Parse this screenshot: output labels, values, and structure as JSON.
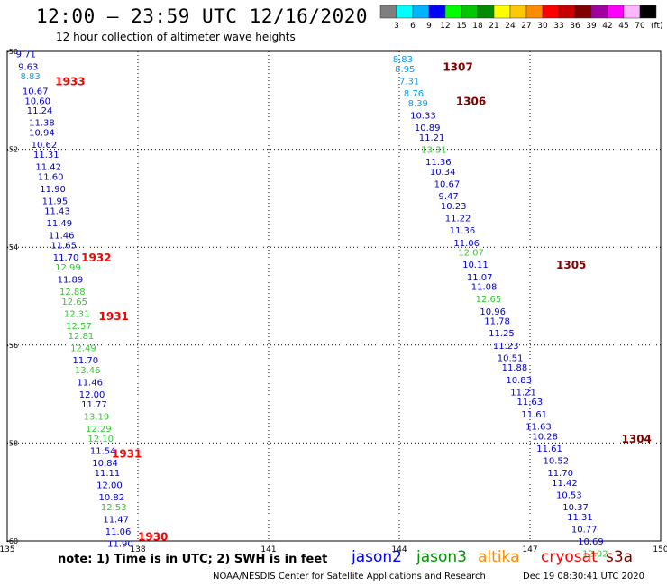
{
  "header": {
    "title": "12:00 – 23:59 UTC 12/16/2020",
    "subtitle": "12 hour collection of altimeter wave heights"
  },
  "color_scale": {
    "unit": "(ft)",
    "bins": [
      {
        "label": "3",
        "color": "#7f7f7f"
      },
      {
        "label": "6",
        "color": "#00ffff"
      },
      {
        "label": "9",
        "color": "#00b4ff"
      },
      {
        "label": "12",
        "color": "#0000ff"
      },
      {
        "label": "15",
        "color": "#00ff00"
      },
      {
        "label": "18",
        "color": "#00c800"
      },
      {
        "label": "21",
        "color": "#008c00"
      },
      {
        "label": "24",
        "color": "#ffff00"
      },
      {
        "label": "27",
        "color": "#ffc800"
      },
      {
        "label": "30",
        "color": "#ff8c00"
      },
      {
        "label": "33",
        "color": "#ff0000"
      },
      {
        "label": "36",
        "color": "#c80000"
      },
      {
        "label": "39",
        "color": "#800000"
      },
      {
        "label": "42",
        "color": "#a000a0"
      },
      {
        "label": "45",
        "color": "#ff00ff"
      },
      {
        "label": "70",
        "color": "#ffb4ff"
      },
      {
        "label": "",
        "color": "#000000"
      }
    ]
  },
  "map": {
    "lon_ticks": [
      "135",
      "138",
      "141",
      "144",
      "147",
      "150"
    ],
    "lat_ticks": [
      "-50",
      "-52",
      "-54",
      "-56",
      "-58",
      "-60"
    ],
    "lon_range": [
      135,
      150
    ],
    "lat_range": [
      -60,
      -50
    ]
  },
  "chart_data": {
    "type": "scatter",
    "title": "12:00 – 23:59 UTC 12/16/2020",
    "xlabel": "",
    "ylabel": "",
    "xlim": [
      135,
      150
    ],
    "ylim": [
      -60,
      -50
    ],
    "tracks": [
      {
        "satellite": "cryosat",
        "time_labels": [
          {
            "label": "1933",
            "lon": 136.1,
            "lat": -50.6
          },
          {
            "label": "1932",
            "lon": 136.7,
            "lat": -54.2
          },
          {
            "label": "1931",
            "lon": 137.1,
            "lat": -55.4
          },
          {
            "label": "1931",
            "lon": 137.4,
            "lat": -58.2
          },
          {
            "label": "1930",
            "lon": 138.0,
            "lat": -59.9
          }
        ],
        "points": [
          {
            "lon": 135.2,
            "lat": -50.05,
            "swh": "9.71",
            "color": "#0000c8"
          },
          {
            "lon": 135.25,
            "lat": -50.3,
            "swh": "9.63",
            "color": "#0000c8"
          },
          {
            "lon": 135.3,
            "lat": -50.5,
            "swh": "8.83",
            "color": "#00a0ff"
          },
          {
            "lon": 135.35,
            "lat": -50.8,
            "swh": "10.67",
            "color": "#0000c8"
          },
          {
            "lon": 135.4,
            "lat": -51.0,
            "swh": "10.60",
            "color": "#0000c8"
          },
          {
            "lon": 135.45,
            "lat": -51.2,
            "swh": "11.24",
            "color": "#0000c8"
          },
          {
            "lon": 135.5,
            "lat": -51.45,
            "swh": "11.38",
            "color": "#0000c8"
          },
          {
            "lon": 135.5,
            "lat": -51.65,
            "swh": "10.94",
            "color": "#0000c8"
          },
          {
            "lon": 135.55,
            "lat": -51.9,
            "swh": "10.62",
            "color": "#0000c8"
          },
          {
            "lon": 135.6,
            "lat": -52.1,
            "swh": "11.31",
            "color": "#0000c8"
          },
          {
            "lon": 135.65,
            "lat": -52.35,
            "swh": "11.42",
            "color": "#0000c8"
          },
          {
            "lon": 135.7,
            "lat": -52.55,
            "swh": "11.60",
            "color": "#0000c8"
          },
          {
            "lon": 135.75,
            "lat": -52.8,
            "swh": "11.90",
            "color": "#0000c8"
          },
          {
            "lon": 135.8,
            "lat": -53.05,
            "swh": "11.95",
            "color": "#0000c8"
          },
          {
            "lon": 135.85,
            "lat": -53.25,
            "swh": "11.43",
            "color": "#0000c8"
          },
          {
            "lon": 135.9,
            "lat": -53.5,
            "swh": "11.49",
            "color": "#0000c8"
          },
          {
            "lon": 135.95,
            "lat": -53.75,
            "swh": "11.46",
            "color": "#0000c8"
          },
          {
            "lon": 136.0,
            "lat": -53.95,
            "swh": "11.65",
            "color": "#0000c8"
          },
          {
            "lon": 136.05,
            "lat": -54.2,
            "swh": "11.70",
            "color": "#0000c8"
          },
          {
            "lon": 136.1,
            "lat": -54.4,
            "swh": "12.99",
            "color": "#32c832"
          },
          {
            "lon": 136.15,
            "lat": -54.65,
            "swh": "11.89",
            "color": "#0000c8"
          },
          {
            "lon": 136.2,
            "lat": -54.9,
            "swh": "12.88",
            "color": "#32c832"
          },
          {
            "lon": 136.25,
            "lat": -55.1,
            "swh": "12.65",
            "color": "#32c832"
          },
          {
            "lon": 136.3,
            "lat": -55.35,
            "swh": "12.31",
            "color": "#32c832"
          },
          {
            "lon": 136.35,
            "lat": -55.6,
            "swh": "12.57",
            "color": "#32c832"
          },
          {
            "lon": 136.4,
            "lat": -55.8,
            "swh": "12.81",
            "color": "#32c832"
          },
          {
            "lon": 136.45,
            "lat": -56.05,
            "swh": "12.49",
            "color": "#32c832"
          },
          {
            "lon": 136.5,
            "lat": -56.3,
            "swh": "11.70",
            "color": "#0000c8"
          },
          {
            "lon": 136.55,
            "lat": -56.5,
            "swh": "13.46",
            "color": "#32c832"
          },
          {
            "lon": 136.6,
            "lat": -56.75,
            "swh": "11.46",
            "color": "#0000c8"
          },
          {
            "lon": 136.65,
            "lat": -57.0,
            "swh": "12.00",
            "color": "#0000c8"
          },
          {
            "lon": 136.7,
            "lat": -57.2,
            "swh": "11.77",
            "color": "#0000c8"
          },
          {
            "lon": 136.75,
            "lat": -57.45,
            "swh": "13.19",
            "color": "#32c832"
          },
          {
            "lon": 136.8,
            "lat": -57.7,
            "swh": "12.29",
            "color": "#32c832"
          },
          {
            "lon": 136.85,
            "lat": -57.9,
            "swh": "12.10",
            "color": "#32c832"
          },
          {
            "lon": 136.9,
            "lat": -58.15,
            "swh": "11.54",
            "color": "#0000c8"
          },
          {
            "lon": 136.95,
            "lat": -58.4,
            "swh": "10.84",
            "color": "#0000c8"
          },
          {
            "lon": 137.0,
            "lat": -58.6,
            "swh": "11.11",
            "color": "#0000c8"
          },
          {
            "lon": 137.05,
            "lat": -58.85,
            "swh": "12.00",
            "color": "#0000c8"
          },
          {
            "lon": 137.1,
            "lat": -59.1,
            "swh": "10.82",
            "color": "#0000c8"
          },
          {
            "lon": 137.15,
            "lat": -59.3,
            "swh": "12.53",
            "color": "#32c832"
          },
          {
            "lon": 137.2,
            "lat": -59.55,
            "swh": "11.47",
            "color": "#0000c8"
          },
          {
            "lon": 137.25,
            "lat": -59.8,
            "swh": "11.06",
            "color": "#0000c8"
          },
          {
            "lon": 137.3,
            "lat": -60.05,
            "swh": "11.90",
            "color": "#0000c8"
          }
        ]
      },
      {
        "satellite": "s3a",
        "time_labels": [
          {
            "label": "1307",
            "lon": 145.0,
            "lat": -50.3
          },
          {
            "label": "1306",
            "lon": 145.3,
            "lat": -51.0
          },
          {
            "label": "1305",
            "lon": 147.6,
            "lat": -54.35
          },
          {
            "label": "1304",
            "lon": 149.1,
            "lat": -57.9
          }
        ],
        "points": [
          {
            "lon": 143.85,
            "lat": -50.15,
            "swh": "8.83",
            "color": "#00a0ff"
          },
          {
            "lon": 143.9,
            "lat": -50.35,
            "swh": "8.95",
            "color": "#00a0ff"
          },
          {
            "lon": 144.0,
            "lat": -50.6,
            "swh": "7.31",
            "color": "#00a0ff"
          },
          {
            "lon": 144.1,
            "lat": -50.85,
            "swh": "8.76",
            "color": "#00a0ff"
          },
          {
            "lon": 144.2,
            "lat": -51.05,
            "swh": "8.39",
            "color": "#00a0ff"
          },
          {
            "lon": 144.25,
            "lat": -51.3,
            "swh": "10.33",
            "color": "#0000c8"
          },
          {
            "lon": 144.35,
            "lat": -51.55,
            "swh": "10.89",
            "color": "#0000c8"
          },
          {
            "lon": 144.45,
            "lat": -51.75,
            "swh": "11.21",
            "color": "#0000c8"
          },
          {
            "lon": 144.5,
            "lat": -52.0,
            "swh": "13.31",
            "color": "#32c832"
          },
          {
            "lon": 144.6,
            "lat": -52.25,
            "swh": "11.36",
            "color": "#0000c8"
          },
          {
            "lon": 144.7,
            "lat": -52.45,
            "swh": "10.34",
            "color": "#0000c8"
          },
          {
            "lon": 144.8,
            "lat": -52.7,
            "swh": "10.67",
            "color": "#0000c8"
          },
          {
            "lon": 144.9,
            "lat": -52.95,
            "swh": "9.47",
            "color": "#0000c8"
          },
          {
            "lon": 144.95,
            "lat": -53.15,
            "swh": "10.23",
            "color": "#0000c8"
          },
          {
            "lon": 145.05,
            "lat": -53.4,
            "swh": "11.22",
            "color": "#0000c8"
          },
          {
            "lon": 145.15,
            "lat": -53.65,
            "swh": "11.36",
            "color": "#0000c8"
          },
          {
            "lon": 145.25,
            "lat": -53.9,
            "swh": "11.06",
            "color": "#0000c8"
          },
          {
            "lon": 145.35,
            "lat": -54.1,
            "swh": "12.07",
            "color": "#32c832"
          },
          {
            "lon": 145.45,
            "lat": -54.35,
            "swh": "10.11",
            "color": "#0000c8"
          },
          {
            "lon": 145.55,
            "lat": -54.6,
            "swh": "11.07",
            "color": "#0000c8"
          },
          {
            "lon": 145.65,
            "lat": -54.8,
            "swh": "11.08",
            "color": "#0000c8"
          },
          {
            "lon": 145.75,
            "lat": -55.05,
            "swh": "12.65",
            "color": "#32c832"
          },
          {
            "lon": 145.85,
            "lat": -55.3,
            "swh": "10.96",
            "color": "#0000c8"
          },
          {
            "lon": 145.95,
            "lat": -55.5,
            "swh": "11.78",
            "color": "#0000c8"
          },
          {
            "lon": 146.05,
            "lat": -55.75,
            "swh": "11.25",
            "color": "#0000c8"
          },
          {
            "lon": 146.15,
            "lat": -56.0,
            "swh": "11.23",
            "color": "#0000c8"
          },
          {
            "lon": 146.25,
            "lat": -56.25,
            "swh": "10.51",
            "color": "#0000c8"
          },
          {
            "lon": 146.35,
            "lat": -56.45,
            "swh": "11.88",
            "color": "#0000c8"
          },
          {
            "lon": 146.45,
            "lat": -56.7,
            "swh": "10.83",
            "color": "#0000c8"
          },
          {
            "lon": 146.55,
            "lat": -56.95,
            "swh": "11.21",
            "color": "#0000c8"
          },
          {
            "lon": 146.7,
            "lat": -57.15,
            "swh": "11.63",
            "color": "#0000c8"
          },
          {
            "lon": 146.8,
            "lat": -57.4,
            "swh": "11.61",
            "color": "#0000c8"
          },
          {
            "lon": 146.9,
            "lat": -57.65,
            "swh": "11.63",
            "color": "#0000c8"
          },
          {
            "lon": 147.05,
            "lat": -57.85,
            "swh": "10.28",
            "color": "#0000c8"
          },
          {
            "lon": 147.15,
            "lat": -58.1,
            "swh": "11.61",
            "color": "#0000c8"
          },
          {
            "lon": 147.3,
            "lat": -58.35,
            "swh": "10.52",
            "color": "#0000c8"
          },
          {
            "lon": 147.4,
            "lat": -58.6,
            "swh": "11.70",
            "color": "#0000c8"
          },
          {
            "lon": 147.5,
            "lat": -58.8,
            "swh": "11.42",
            "color": "#0000c8"
          },
          {
            "lon": 147.6,
            "lat": -59.05,
            "swh": "10.53",
            "color": "#0000c8"
          },
          {
            "lon": 147.75,
            "lat": -59.3,
            "swh": "10.37",
            "color": "#0000c8"
          },
          {
            "lon": 147.85,
            "lat": -59.5,
            "swh": "11.31",
            "color": "#0000c8"
          },
          {
            "lon": 147.95,
            "lat": -59.75,
            "swh": "10.77",
            "color": "#0000c8"
          },
          {
            "lon": 148.1,
            "lat": -60.0,
            "swh": "10.69",
            "color": "#0000c8"
          },
          {
            "lon": 148.2,
            "lat": -60.25,
            "swh": "12.02",
            "color": "#32c832"
          }
        ]
      }
    ]
  },
  "footer": {
    "note": "note: 1) Time is in UTC; 2) SWH is in feet",
    "satellites": [
      {
        "name": "jason2",
        "color": "#0000ff"
      },
      {
        "name": "jason3",
        "color": "#009600"
      },
      {
        "name": "altika",
        "color": "#ff8c00"
      },
      {
        "name": "cryosat",
        "color": "#ff0000"
      },
      {
        "name": "s3a",
        "color": "#800000"
      }
    ],
    "credit": "NOAA/NESDIS Center for Satellite Applications and Research",
    "timestamp": "Dec 19 08:30:41 UTC 2020"
  }
}
